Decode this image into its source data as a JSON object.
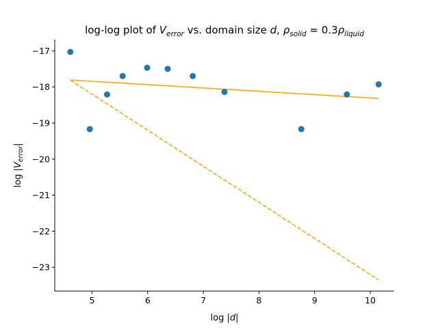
{
  "chart_data": {
    "type": "scatter",
    "title": {
      "prefix": "log-log plot of ",
      "v_symbol": "V",
      "v_subscript": "error",
      "middle": " vs. domain size ",
      "d_symbol": "d",
      "comma": ", ",
      "rho_symbol": "ρ",
      "rho_sub_1": "solid",
      "equals": " = 0.3",
      "rho_sub_2": "liquid"
    },
    "xlabel": {
      "prefix": "log |",
      "symbol": "d",
      "suffix": "|"
    },
    "ylabel": {
      "prefix": "log |",
      "symbol": "V",
      "subscript": "error",
      "suffix": "|"
    },
    "xlim": [
      4.33,
      10.43
    ],
    "ylim": [
      -23.66,
      -16.69
    ],
    "xticks": [
      5,
      6,
      7,
      8,
      9,
      10
    ],
    "yticks": [
      -17,
      -18,
      -19,
      -20,
      -21,
      -22,
      -23
    ],
    "xtick_labels": [
      "5",
      "6",
      "7",
      "8",
      "9",
      "10"
    ],
    "ytick_labels": [
      "−17",
      "−18",
      "−19",
      "−20",
      "−21",
      "−22",
      "−23"
    ],
    "grid": false,
    "spines": "left-bottom",
    "points": [
      {
        "x": 4.61,
        "y": -17.03
      },
      {
        "x": 4.96,
        "y": -19.17
      },
      {
        "x": 5.27,
        "y": -18.21
      },
      {
        "x": 5.55,
        "y": -17.7
      },
      {
        "x": 5.99,
        "y": -17.47
      },
      {
        "x": 6.36,
        "y": -17.5
      },
      {
        "x": 6.81,
        "y": -17.7
      },
      {
        "x": 7.38,
        "y": -18.14
      },
      {
        "x": 8.76,
        "y": -19.17
      },
      {
        "x": 9.58,
        "y": -18.21
      },
      {
        "x": 10.15,
        "y": -17.93
      }
    ],
    "lines": [
      {
        "style": "solid",
        "x": [
          4.61,
          10.15
        ],
        "y": [
          -17.81,
          -18.32
        ]
      },
      {
        "style": "dashed",
        "x": [
          4.61,
          10.15
        ],
        "y": [
          -17.81,
          -23.35
        ]
      }
    ],
    "colors": {
      "points": "#1f77b4",
      "fit_lines": "#ffa500",
      "axes": "#000000"
    }
  }
}
